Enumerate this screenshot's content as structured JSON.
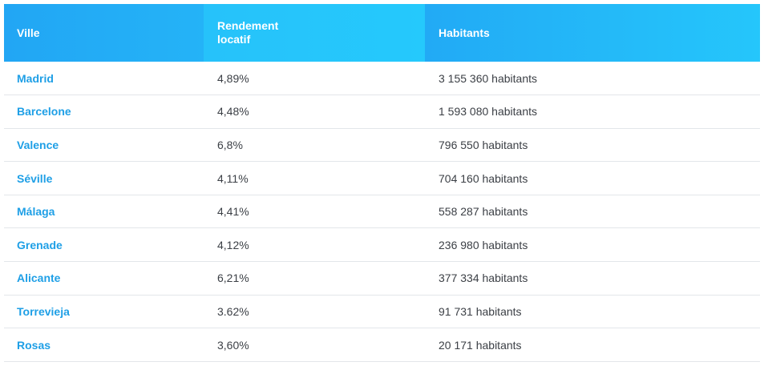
{
  "table": {
    "headers": {
      "city": "Ville",
      "yield": "Rendement locatif",
      "population": "Habitants"
    },
    "rows": [
      {
        "city": "Madrid",
        "yield": "4,89%",
        "population": "3 155 360 habitants"
      },
      {
        "city": "Barcelone",
        "yield": "4,48%",
        "population": "1 593 080 habitants"
      },
      {
        "city": "Valence",
        "yield": "6,8%",
        "population": "796 550 habitants"
      },
      {
        "city": "Séville",
        "yield": "4,11%",
        "population": "704 160 habitants"
      },
      {
        "city": "Málaga",
        "yield": "4,41%",
        "population": "558 287 habitants"
      },
      {
        "city": "Grenade",
        "yield": "4,12%",
        "population": "236 980 habitants"
      },
      {
        "city": "Alicante",
        "yield": "6,21%",
        "population": "377 334 habitants"
      },
      {
        "city": "Torrevieja",
        "yield": "3.62%",
        "population": "91 731 habitants"
      },
      {
        "city": "Rosas",
        "yield": "3,60%",
        "population": "20 171 habitants"
      }
    ]
  },
  "colors": {
    "header_blue": "#22a6f4",
    "header_cyan": "#25c9fc",
    "city_link": "#1e9fe6",
    "text": "#3b3f45",
    "divider": "#e3e6ea"
  }
}
